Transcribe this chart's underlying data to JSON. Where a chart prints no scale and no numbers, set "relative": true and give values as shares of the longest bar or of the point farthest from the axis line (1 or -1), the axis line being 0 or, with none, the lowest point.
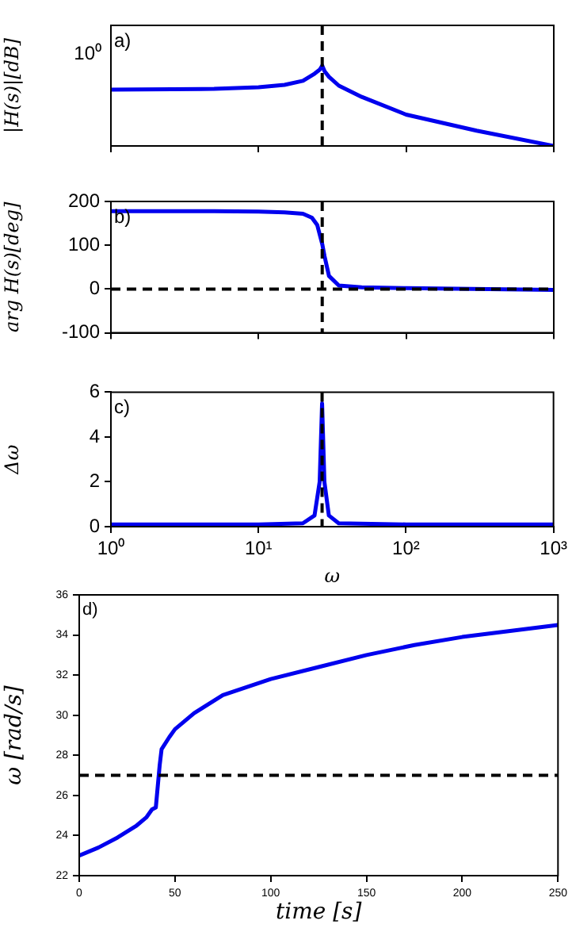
{
  "chart_data": [
    {
      "type": "line",
      "ylabel": "|H(s)|[dB]",
      "relative": true,
      "log": "x",
      "xlim": [
        1,
        1000
      ],
      "xticks": [
        {
          "value": 1,
          "label": null
        },
        {
          "value": 10,
          "label": null
        },
        {
          "value": 100,
          "label": null
        },
        {
          "value": 1000,
          "label": null
        }
      ],
      "tick_labels": "y",
      "grid": false,
      "legend": false,
      "annotations": [
        "a)",
        "10⁰"
      ],
      "ref_lines": [
        {
          "axis": "x",
          "value": 27,
          "color": "#000000",
          "line_style": "dashed"
        }
      ],
      "x": [
        1,
        5,
        10,
        15,
        20,
        24,
        26,
        27,
        28,
        30,
        35,
        50,
        100,
        300,
        1000
      ],
      "series": [
        {
          "color": "#0000ee",
          "values": [
            0.7,
            0.71,
            0.73,
            0.76,
            0.81,
            0.9,
            0.95,
            1,
            0.93,
            0.86,
            0.75,
            0.61,
            0.39,
            0.19,
            0
          ]
        }
      ]
    },
    {
      "type": "line",
      "ylabel": "arg H(s)[deg]",
      "log": "x",
      "xlim": [
        1,
        1000
      ],
      "xticks": [
        {
          "value": 1,
          "label": null
        },
        {
          "value": 10,
          "label": null
        },
        {
          "value": 100,
          "label": null
        },
        {
          "value": 1000,
          "label": null
        }
      ],
      "ylim": [
        -100,
        200
      ],
      "yticks": [
        -100,
        0,
        100,
        200
      ],
      "tick_labels": "y",
      "grid": false,
      "legend": false,
      "annotations": [
        "b)"
      ],
      "ref_lines": [
        {
          "axis": "x",
          "value": 27,
          "color": "#000000",
          "line_style": "dashed"
        },
        {
          "axis": "y",
          "value": 0,
          "color": "#000000",
          "line_style": "dashed"
        }
      ],
      "x": [
        1,
        5,
        10,
        15,
        20,
        23,
        25,
        27,
        28,
        30,
        35,
        50,
        100,
        1000
      ],
      "series": [
        {
          "color": "#0000ee",
          "values": [
            178,
            178,
            177,
            175,
            172,
            163,
            146,
            103,
            75,
            30,
            8,
            4,
            2,
            -2
          ]
        }
      ]
    },
    {
      "type": "line",
      "xlabel": "ω",
      "ylabel": "Δω",
      "log": "x",
      "xlim": [
        1,
        1000
      ],
      "xticks": [
        {
          "value": 1,
          "label": "10⁰"
        },
        {
          "value": 10,
          "label": "10¹"
        },
        {
          "value": 100,
          "label": "10²"
        },
        {
          "value": 1000,
          "label": "10³"
        }
      ],
      "ylim": [
        0,
        6
      ],
      "yticks": [
        0,
        2,
        4,
        6
      ],
      "grid": false,
      "legend": false,
      "annotations": [
        "c)"
      ],
      "ref_lines": [
        {
          "axis": "x",
          "value": 27,
          "color": "#000000",
          "line_style": "dashed"
        }
      ],
      "x": [
        1,
        10,
        20,
        24,
        26,
        27,
        28,
        30,
        35,
        100,
        1000
      ],
      "series": [
        {
          "color": "#0000ee",
          "values": [
            0.1,
            0.1,
            0.15,
            0.5,
            2,
            5.5,
            2,
            0.5,
            0.15,
            0.1,
            0.1
          ]
        }
      ]
    },
    {
      "type": "line",
      "xlabel": "time [s]",
      "ylabel": "ω [rad/s]",
      "xlim": [
        0,
        250
      ],
      "xticks": [
        0,
        50,
        100,
        150,
        200,
        250
      ],
      "ylim": [
        22,
        36
      ],
      "yticks": [
        22,
        24,
        26,
        28,
        30,
        32,
        34,
        36
      ],
      "grid": false,
      "legend": false,
      "annotations": [
        "d)"
      ],
      "ref_lines": [
        {
          "axis": "y",
          "value": 27,
          "color": "#000000",
          "line_style": "dashed"
        }
      ],
      "x": [
        0,
        10,
        20,
        30,
        35,
        38,
        40,
        42,
        43,
        47,
        50,
        60,
        75,
        100,
        125,
        150,
        175,
        200,
        225,
        250
      ],
      "series": [
        {
          "color": "#0000ee",
          "values": [
            23.0,
            23.4,
            23.9,
            24.5,
            24.9,
            25.3,
            25.4,
            27.5,
            28.3,
            28.9,
            29.3,
            30.1,
            31.0,
            31.8,
            32.4,
            33.0,
            33.5,
            33.9,
            34.2,
            34.5
          ]
        }
      ]
    }
  ]
}
